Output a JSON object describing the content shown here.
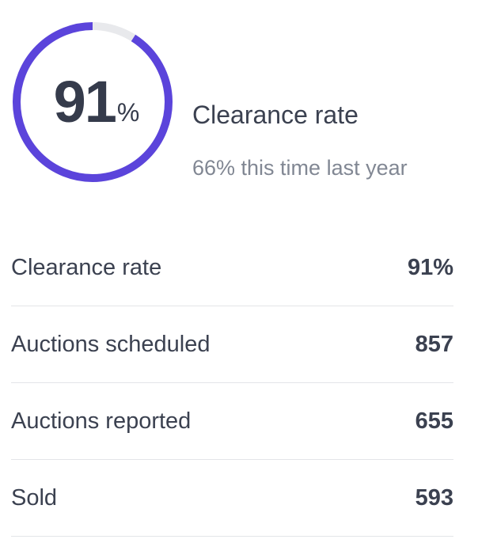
{
  "summary": {
    "percentage": 91,
    "value": "91",
    "unit": "%",
    "title": "Clearance rate",
    "comparison": "66% this time last year",
    "colors": {
      "ring_fill": "#5b44db",
      "ring_track": "#e8e9ec"
    }
  },
  "stats": [
    {
      "label": "Clearance rate",
      "value": "91%"
    },
    {
      "label": "Auctions scheduled",
      "value": "857"
    },
    {
      "label": "Auctions reported",
      "value": "655"
    },
    {
      "label": "Sold",
      "value": "593"
    }
  ]
}
